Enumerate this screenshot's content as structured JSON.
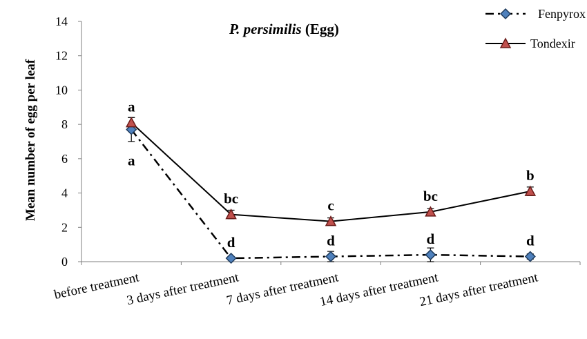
{
  "chart_data": {
    "type": "line",
    "title_italic": "P. persimilis",
    "title_rest": " (Egg)",
    "xlabel": "",
    "ylabel": "Mean number of egg  per leaf",
    "categories": [
      "before treatment",
      "3 days after treatment",
      "7 days after treatment",
      "14 days after treatment",
      "21 days after treatment"
    ],
    "ylim": [
      0,
      14
    ],
    "yticks": [
      "0",
      "2",
      "4",
      "6",
      "8",
      "10",
      "12",
      "14"
    ],
    "grid": false,
    "legend_position": "top-right",
    "series": [
      {
        "name": "Fenpyrox",
        "values": [
          7.7,
          0.2,
          0.3,
          0.4,
          0.3
        ],
        "errors": [
          0.7,
          0.1,
          0.3,
          0.4,
          0.15
        ],
        "labels": [
          "a",
          "d",
          "d",
          "d",
          "d"
        ],
        "line_style": "dash-dot",
        "marker": "diamond",
        "marker_color": "#4f81bd",
        "line_color": "#000000"
      },
      {
        "name": "Tondexir",
        "values": [
          8.1,
          2.75,
          2.35,
          2.9,
          4.1
        ],
        "errors": [
          0.3,
          0.25,
          0.2,
          0.2,
          0.25
        ],
        "labels": [
          "a",
          "bc",
          "c",
          "bc",
          "b"
        ],
        "line_style": "solid",
        "marker": "triangle",
        "marker_color": "#c0504d",
        "line_color": "#000000"
      }
    ]
  }
}
